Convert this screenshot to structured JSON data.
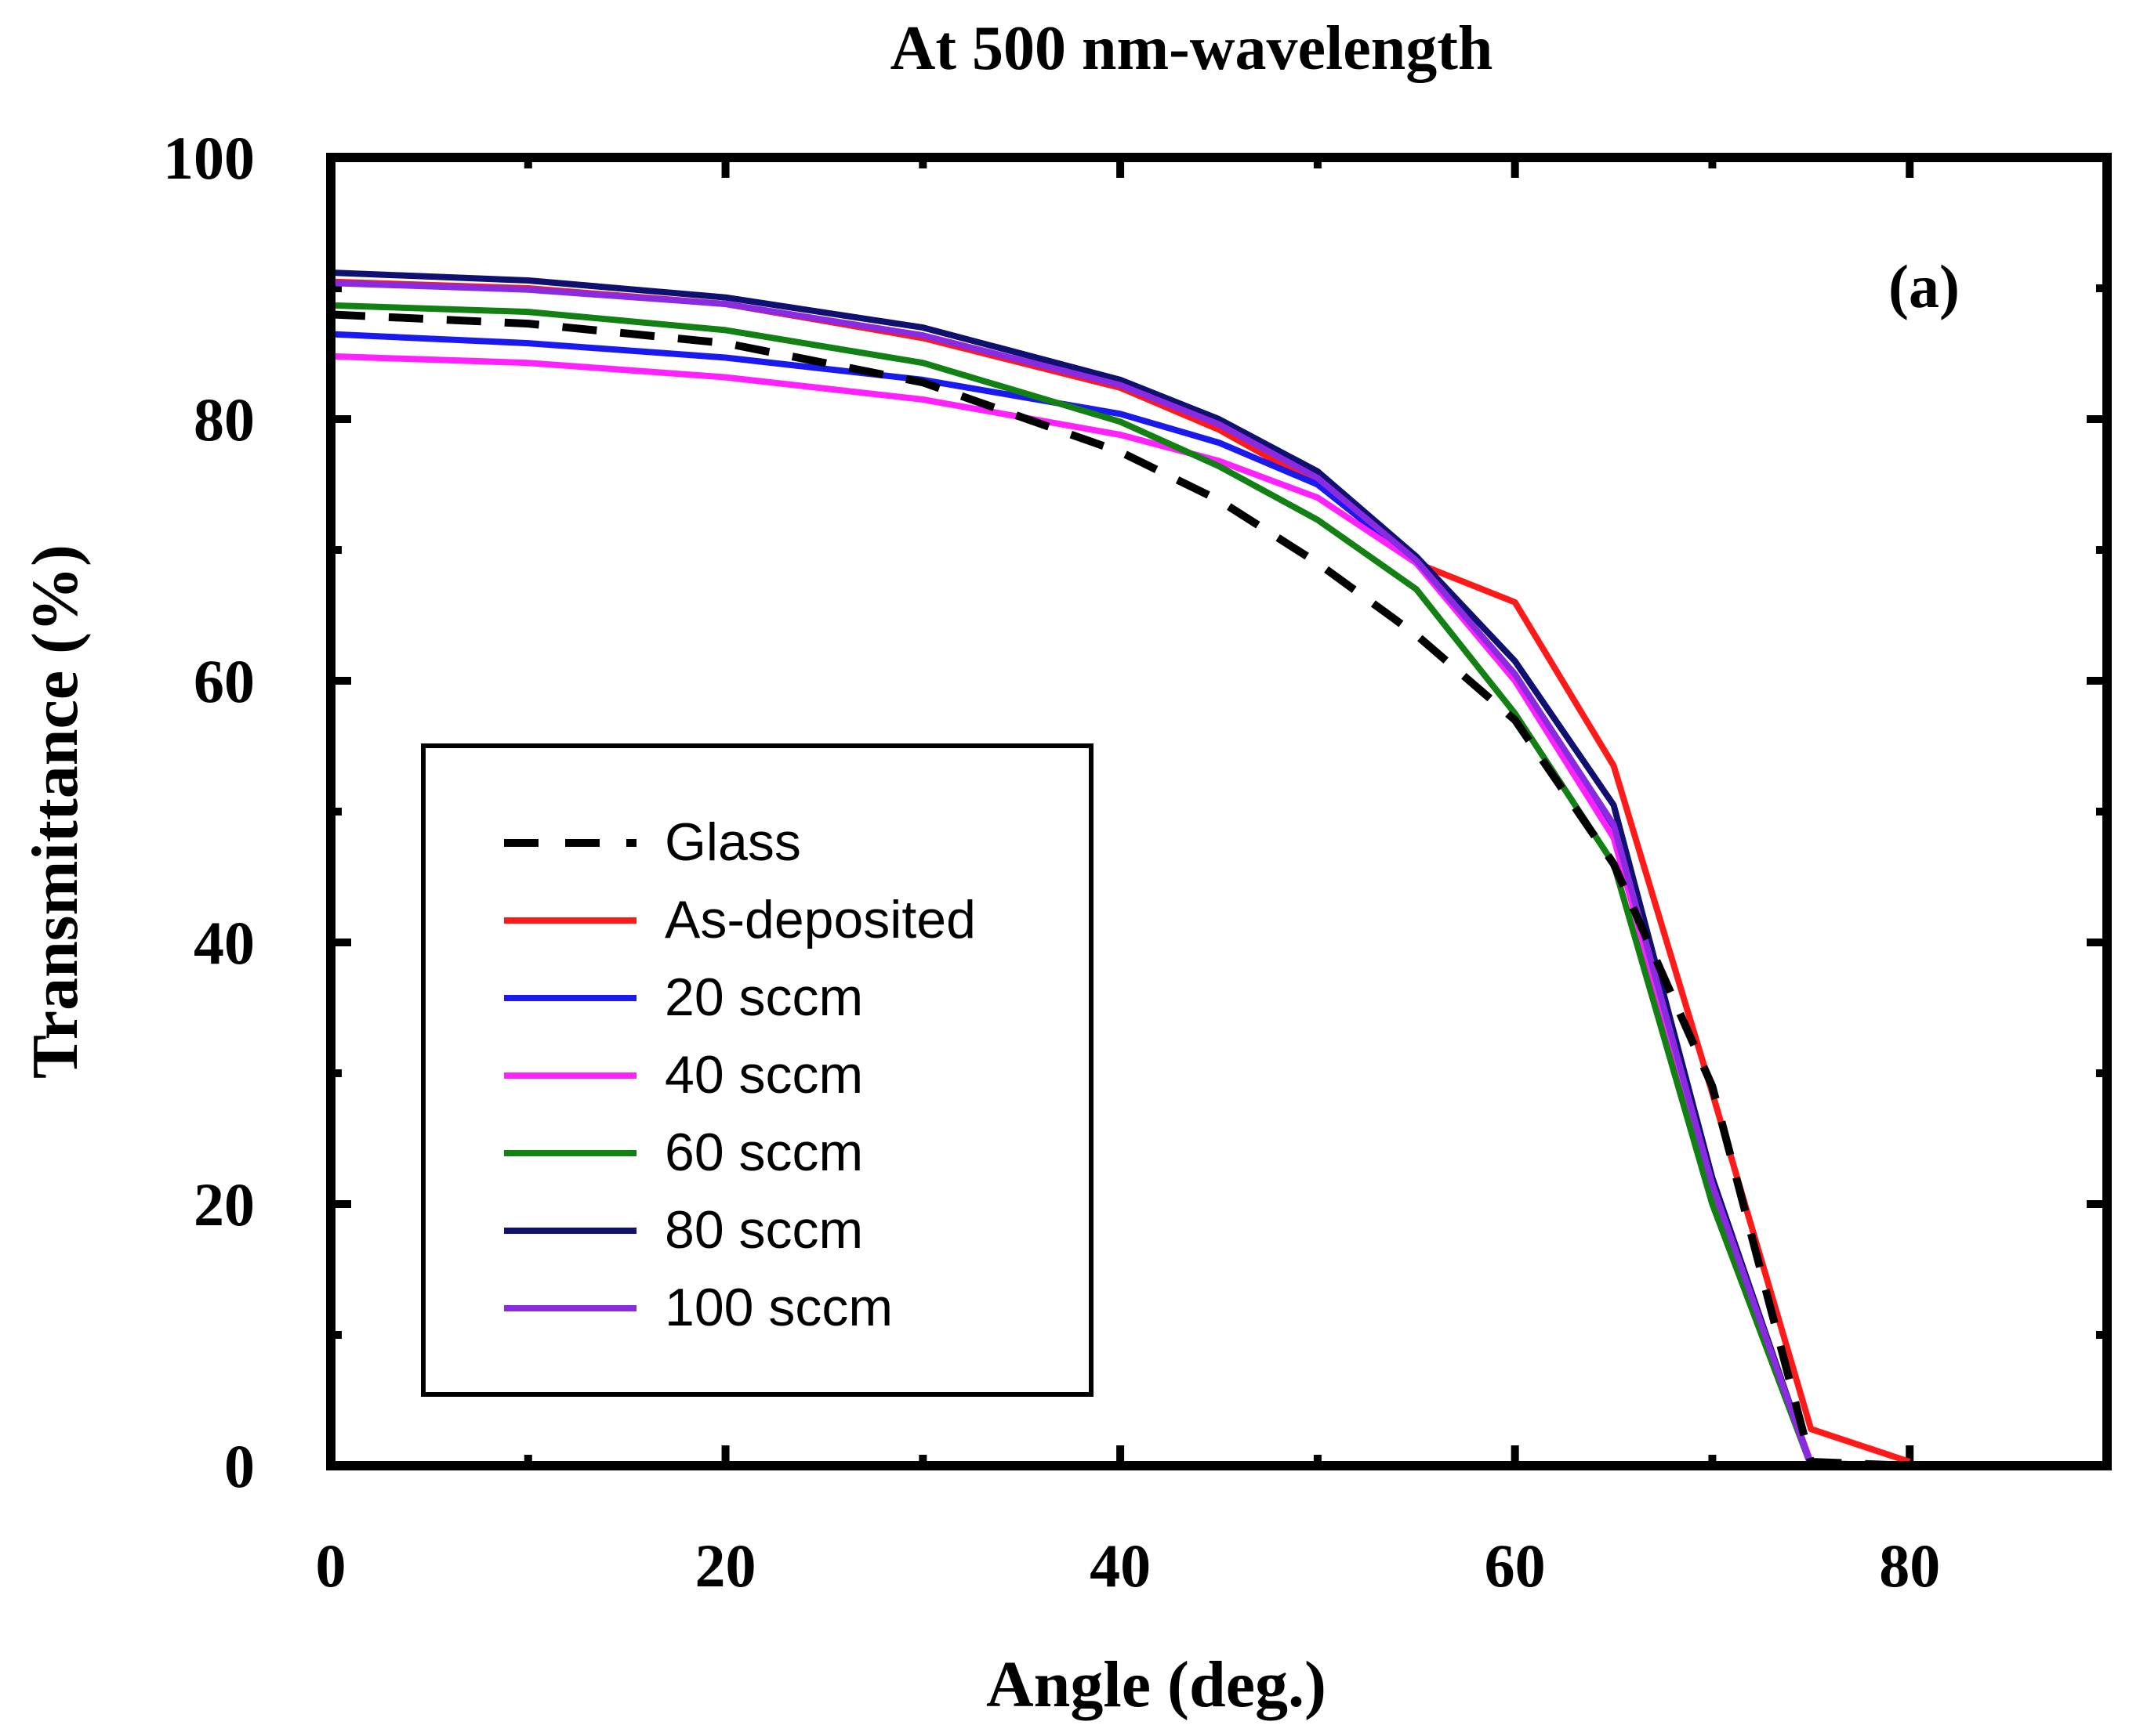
{
  "chart_data": {
    "type": "line",
    "title": "At 500 nm-wavelength",
    "panel_label": "(a)",
    "xlabel": "Angle (deg.)",
    "ylabel": "Transmittance (%)",
    "xlim": [
      0,
      90
    ],
    "ylim": [
      0,
      100
    ],
    "x_ticks": [
      0,
      20,
      40,
      60,
      80
    ],
    "y_ticks": [
      0,
      20,
      40,
      60,
      80,
      100
    ],
    "x_tick_labels": [
      "0",
      "20",
      "40",
      "60",
      "80"
    ],
    "y_tick_labels": [
      "0",
      "20",
      "40",
      "60",
      "80",
      "100"
    ],
    "legend_position": "lower-left",
    "series": [
      {
        "name": "Glass",
        "color": "#000000",
        "dash": true,
        "x": [
          0,
          10,
          20,
          30,
          40,
          45,
          50,
          55,
          60,
          65,
          70,
          75,
          80
        ],
        "y": [
          88,
          87.3,
          85.8,
          82.8,
          77.5,
          73.8,
          69,
          63.5,
          57,
          46,
          29,
          0.3,
          0
        ]
      },
      {
        "name": "As-deposited",
        "color": "#ff1a1a",
        "dash": false,
        "x": [
          0,
          10,
          20,
          30,
          40,
          45,
          50,
          55,
          60,
          65,
          70,
          75,
          80
        ],
        "y": [
          90.5,
          90,
          88.8,
          86.2,
          82.4,
          79.2,
          75,
          69,
          66,
          53.5,
          28.5,
          2.8,
          0.3
        ]
      },
      {
        "name": "20 sccm",
        "color": "#1a1aee",
        "dash": false,
        "x": [
          0,
          10,
          20,
          30,
          40,
          45,
          50,
          55,
          60,
          65,
          70,
          75,
          80
        ],
        "y": [
          86.5,
          85.8,
          84.7,
          83,
          80.4,
          78.2,
          75,
          69,
          60.5,
          48.5,
          21,
          0.2,
          0
        ]
      },
      {
        "name": "40 sccm",
        "color": "#ff22ff",
        "dash": false,
        "x": [
          0,
          10,
          20,
          30,
          40,
          45,
          50,
          55,
          60,
          65,
          70,
          75,
          80
        ],
        "y": [
          84.8,
          84.3,
          83.2,
          81.5,
          78.8,
          76.8,
          74,
          69,
          60,
          48,
          21,
          0.2,
          0
        ]
      },
      {
        "name": "60 sccm",
        "color": "#138013",
        "dash": false,
        "x": [
          0,
          10,
          20,
          30,
          40,
          45,
          50,
          55,
          60,
          65,
          70,
          75,
          80
        ],
        "y": [
          88.7,
          88.2,
          86.8,
          84.3,
          79.8,
          76.4,
          72.3,
          67,
          57.5,
          46,
          20,
          0,
          0
        ]
      },
      {
        "name": "80 sccm",
        "color": "#0f1070",
        "dash": false,
        "x": [
          0,
          10,
          20,
          30,
          40,
          45,
          50,
          55,
          60,
          65,
          70,
          75,
          80
        ],
        "y": [
          91.2,
          90.6,
          89.3,
          87,
          83,
          80,
          76,
          69.5,
          61.5,
          50.5,
          22,
          0,
          0
        ]
      },
      {
        "name": "100 sccm",
        "color": "#8a2be2",
        "dash": false,
        "x": [
          0,
          10,
          20,
          30,
          40,
          45,
          50,
          55,
          60,
          65,
          70,
          75,
          80
        ],
        "y": [
          90.4,
          89.9,
          88.8,
          86.4,
          82.6,
          79.6,
          75.5,
          69.2,
          60.5,
          49,
          21.5,
          0,
          0
        ]
      }
    ]
  }
}
